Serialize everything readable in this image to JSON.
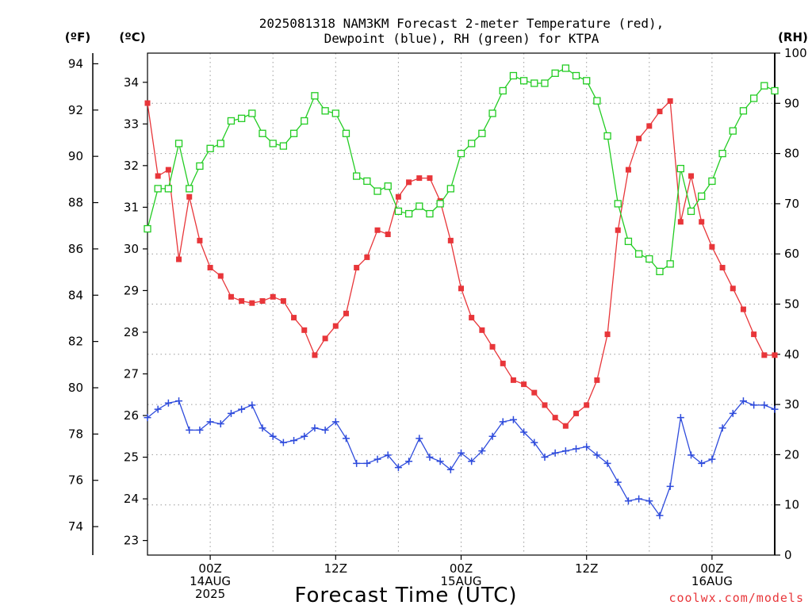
{
  "title_line1": "2025081318 NAM3KM Forecast 2-meter Temperature (red),",
  "title_line2": "Dewpoint (blue), RH (green) for KTPA",
  "units": {
    "fahrenheit": "(ºF)",
    "celsius": "(ºC)",
    "rh": "(RH)"
  },
  "credit": "coolwx.com/models",
  "chart_data": {
    "type": "line",
    "xlabel": "Forecast Time (UTC)",
    "x_hours": [
      0,
      1,
      2,
      3,
      4,
      5,
      6,
      7,
      8,
      9,
      10,
      11,
      12,
      13,
      14,
      15,
      16,
      17,
      18,
      19,
      20,
      21,
      22,
      23,
      24,
      25,
      26,
      27,
      28,
      29,
      30,
      31,
      32,
      33,
      34,
      35,
      36,
      37,
      38,
      39,
      40,
      41,
      42,
      43,
      44,
      45,
      46,
      47,
      48,
      49,
      50,
      51,
      52,
      53,
      54,
      55,
      56,
      57,
      58,
      59,
      60
    ],
    "xlim": [
      0,
      60
    ],
    "x_ticks": [
      {
        "hour": 6,
        "lines": [
          "00Z",
          "14AUG",
          "2025"
        ]
      },
      {
        "hour": 18,
        "lines": [
          "12Z"
        ]
      },
      {
        "hour": 30,
        "lines": [
          "00Z",
          "15AUG"
        ]
      },
      {
        "hour": 42,
        "lines": [
          "12Z"
        ]
      },
      {
        "hour": 54,
        "lines": [
          "00Z",
          "16AUG"
        ]
      }
    ],
    "axes": {
      "celsius_ylim": [
        22.65,
        34.7
      ],
      "celsius_ticks": [
        23,
        24,
        25,
        26,
        27,
        28,
        29,
        30,
        31,
        32,
        33,
        34
      ],
      "fahrenheit_ticks": [
        74,
        76,
        78,
        80,
        82,
        84,
        86,
        88,
        90,
        92,
        94
      ],
      "rh_ylim": [
        0,
        100
      ],
      "rh_ticks": [
        0,
        10,
        20,
        30,
        40,
        50,
        60,
        70,
        80,
        90,
        100
      ],
      "grid": true
    },
    "series": [
      {
        "name": "Temperature",
        "axis": "celsius",
        "color": "#e8363a",
        "marker": "filled-square",
        "values": [
          33.5,
          31.75,
          31.9,
          29.75,
          31.25,
          30.2,
          29.55,
          29.35,
          28.85,
          28.75,
          28.7,
          28.75,
          28.85,
          28.75,
          28.35,
          28.05,
          27.45,
          27.85,
          28.15,
          28.45,
          29.55,
          29.8,
          30.45,
          30.35,
          31.25,
          31.6,
          31.7,
          31.7,
          31.15,
          30.2,
          29.05,
          28.35,
          28.05,
          27.65,
          27.25,
          26.85,
          26.75,
          26.55,
          26.25,
          25.95,
          25.75,
          26.05,
          26.25,
          26.85,
          27.95,
          30.45,
          31.9,
          32.65,
          32.95,
          33.3,
          33.55,
          30.65,
          31.75,
          30.65,
          30.05,
          29.55,
          29.05,
          28.55,
          27.95,
          27.45,
          27.45
        ]
      },
      {
        "name": "Dewpoint",
        "axis": "celsius",
        "color": "#2e4bdc",
        "marker": "plus",
        "values": [
          25.95,
          26.15,
          26.3,
          26.35,
          25.65,
          25.65,
          25.85,
          25.8,
          26.05,
          26.15,
          26.25,
          25.7,
          25.5,
          25.35,
          25.4,
          25.5,
          25.7,
          25.65,
          25.85,
          25.45,
          24.85,
          24.85,
          24.95,
          25.05,
          24.75,
          24.9,
          25.45,
          25.0,
          24.9,
          24.7,
          25.1,
          24.9,
          25.15,
          25.5,
          25.85,
          25.9,
          25.6,
          25.35,
          25.0,
          25.1,
          25.15,
          25.2,
          25.25,
          25.05,
          24.85,
          24.4,
          23.95,
          24.0,
          23.95,
          23.6,
          24.3,
          25.95,
          25.05,
          24.85,
          24.95,
          25.7,
          26.05,
          26.35,
          26.25,
          26.25,
          26.15
        ]
      },
      {
        "name": "RH",
        "axis": "rh",
        "color": "#22cc22",
        "marker": "open-square",
        "values": [
          65,
          73,
          73,
          82,
          73,
          77.5,
          81,
          82,
          86.5,
          87,
          88,
          84,
          82,
          81.5,
          84,
          86.5,
          91.5,
          88.5,
          88,
          84,
          75.5,
          74.5,
          72.5,
          73.5,
          68.5,
          68,
          69.5,
          68,
          70,
          73,
          80,
          82,
          84,
          88,
          92.5,
          95.5,
          94.5,
          94,
          94,
          96,
          97,
          95.5,
          94.5,
          90.5,
          83.5,
          70,
          62.5,
          60,
          59,
          56.5,
          58,
          77,
          68.5,
          71.5,
          74.5,
          80,
          84.5,
          88.5,
          91,
          93.5,
          92.5
        ]
      }
    ]
  }
}
